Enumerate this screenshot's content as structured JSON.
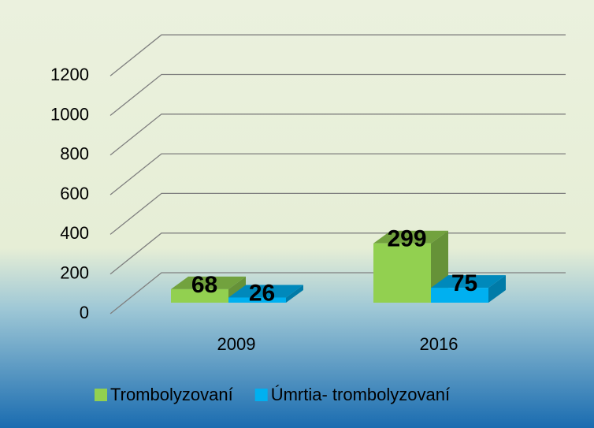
{
  "chart_data": {
    "type": "bar3d",
    "categories": [
      "2009",
      "2016"
    ],
    "series": [
      {
        "name": "Trombolyzovaní",
        "color": "#92d050",
        "values": [
          68,
          299
        ]
      },
      {
        "name": "Úmrtia- trombolyzovaní",
        "color": "#00b0f0",
        "values": [
          26,
          75
        ]
      }
    ],
    "ylim": [
      0,
      1200
    ],
    "yticks": [
      0,
      200,
      400,
      600,
      800,
      1000,
      1200
    ],
    "grid": true,
    "legend": "bottom"
  }
}
